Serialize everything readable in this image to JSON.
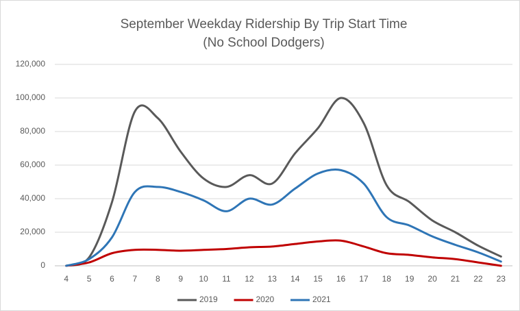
{
  "chart_data": {
    "type": "line",
    "title": "September Weekday Ridership By Trip Start Time",
    "subtitle": "(No School Dodgers)",
    "categories": [
      "4",
      "5",
      "6",
      "7",
      "8",
      "9",
      "10",
      "11",
      "12",
      "13",
      "14",
      "15",
      "16",
      "17",
      "18",
      "19",
      "20",
      "21",
      "22",
      "23"
    ],
    "series": [
      {
        "name": "2019",
        "color": "#595959",
        "values": [
          0,
          5000,
          38000,
          92000,
          88000,
          68000,
          52000,
          47000,
          54000,
          49000,
          67000,
          82000,
          100000,
          85000,
          48000,
          38000,
          27000,
          20000,
          12000,
          5500
        ]
      },
      {
        "name": "2020",
        "color": "#c00000",
        "values": [
          0,
          2000,
          7500,
          9500,
          9500,
          9000,
          9500,
          10000,
          11000,
          11500,
          13000,
          14500,
          15000,
          11500,
          7500,
          6500,
          5000,
          4000,
          2000,
          0
        ]
      },
      {
        "name": "2021",
        "color": "#2e75b6",
        "values": [
          0,
          4000,
          17000,
          44000,
          47000,
          44000,
          39000,
          32500,
          40000,
          36500,
          46000,
          55000,
          57000,
          49000,
          29000,
          24000,
          17500,
          12500,
          8000,
          2500
        ]
      }
    ],
    "ylim": [
      0,
      120000
    ],
    "yticks": [
      0,
      {
        "value": 20000,
        "label": "20,000"
      },
      {
        "value": 40000,
        "label": "40,000"
      },
      {
        "value": 60000,
        "label": "60,000"
      },
      {
        "value": 80000,
        "label": "80,000"
      },
      {
        "value": 100000,
        "label": "100,000"
      },
      {
        "value": 120000,
        "label": "120,000"
      }
    ],
    "grid": true,
    "legend": "bottom"
  }
}
